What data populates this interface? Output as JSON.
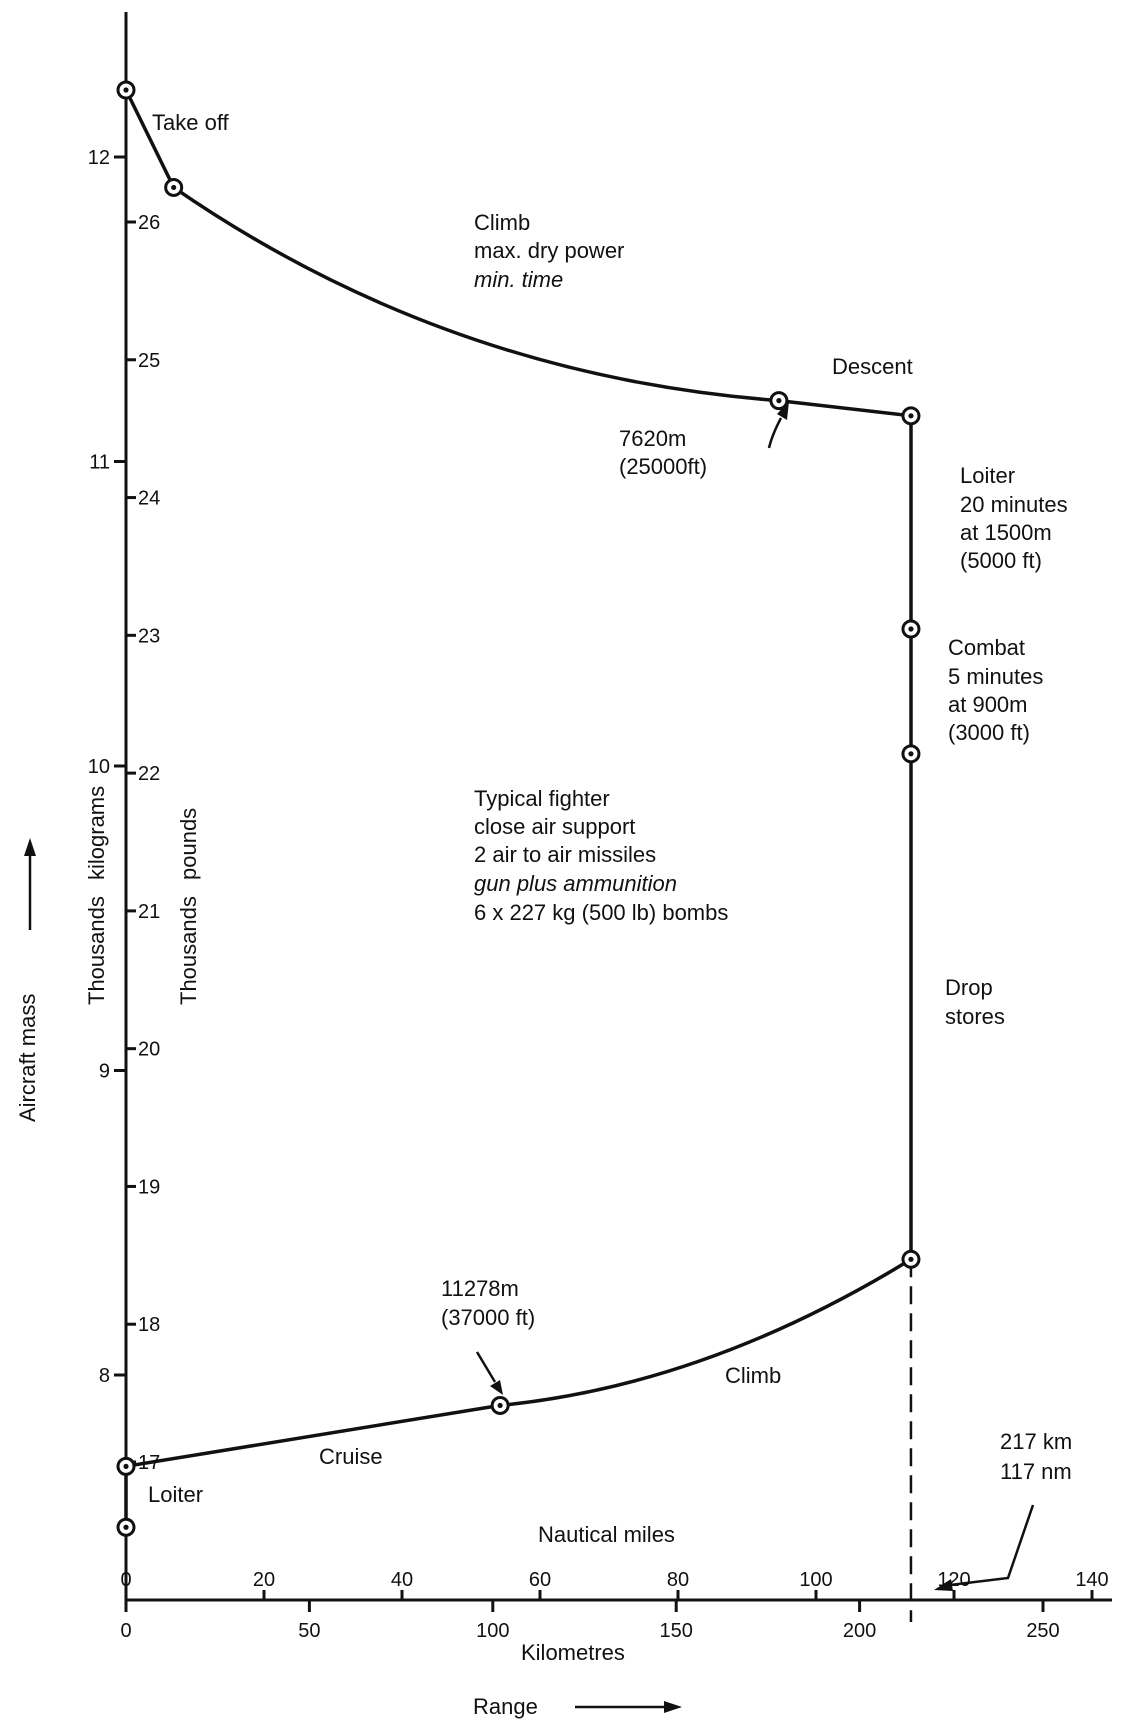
{
  "chart_data": {
    "type": "line",
    "title": "",
    "y_axis_kg": {
      "label_thousands": "Thousands",
      "label_unit": "kilograms",
      "ticks": [
        8,
        9,
        10,
        11,
        12
      ],
      "ylim": [
        7.55,
        12.45
      ]
    },
    "y_axis_lb": {
      "label_thousands": "Thousands",
      "label_unit": "pounds",
      "ticks": [
        17,
        18,
        19,
        20,
        21,
        22,
        23,
        24,
        25,
        26
      ]
    },
    "y_title": "Aircraft mass",
    "x_axis_km": {
      "label": "Kilometres",
      "ticks": [
        0,
        50,
        100,
        150,
        200,
        250
      ],
      "xlim": [
        0,
        262
      ]
    },
    "x_axis_nm": {
      "label": "Nautical miles",
      "ticks": [
        0,
        20,
        40,
        60,
        80,
        100,
        120,
        140
      ]
    },
    "x_title": "Range",
    "mission": [
      {
        "label": "",
        "x": 0,
        "y": 12.22,
        "marker": true
      },
      {
        "label": "",
        "x": 13,
        "y": 11.9,
        "marker": true
      },
      {
        "label": "",
        "x": 178,
        "y": 11.2,
        "marker": true
      },
      {
        "label": "",
        "x": 214,
        "y": 11.15,
        "marker": true
      },
      {
        "label": "",
        "x": 214,
        "y": 10.45,
        "marker": true
      },
      {
        "label": "",
        "x": 214,
        "y": 10.04,
        "marker": true
      },
      {
        "label": "",
        "x": 214,
        "y": 8.38,
        "marker": true
      },
      {
        "label": "",
        "x": 102,
        "y": 7.9,
        "marker": true
      },
      {
        "label": "",
        "x": 0,
        "y": 7.7,
        "marker": true
      },
      {
        "label": "",
        "x": 0,
        "y": 7.5,
        "marker": true
      }
    ],
    "segment_labels": {
      "takeoff": "Take off",
      "climb1_lines": [
        "Climb",
        "max. dry power",
        "min. time"
      ],
      "descent": "Descent",
      "alt1_lines": [
        "7620m",
        "(25000ft)"
      ],
      "loiter1_lines": [
        "Loiter",
        "20 minutes",
        "at 1500m",
        "(5000 ft)"
      ],
      "combat_lines": [
        "Combat",
        "5 minutes",
        "at 900m",
        "(3000 ft)"
      ],
      "drop_lines": [
        "Drop",
        "stores"
      ],
      "alt2_lines": [
        "11278m",
        "(37000 ft)"
      ],
      "climb2": "Climb",
      "cruise": "Cruise",
      "loiter2": "Loiter",
      "range_lines": [
        "217 km",
        "117  nm"
      ]
    },
    "config_lines": [
      "Typical fighter",
      "close air support",
      "2 air to air missiles",
      "gun plus ammunition",
      "6  x 227 kg (500 lb) bombs"
    ]
  }
}
